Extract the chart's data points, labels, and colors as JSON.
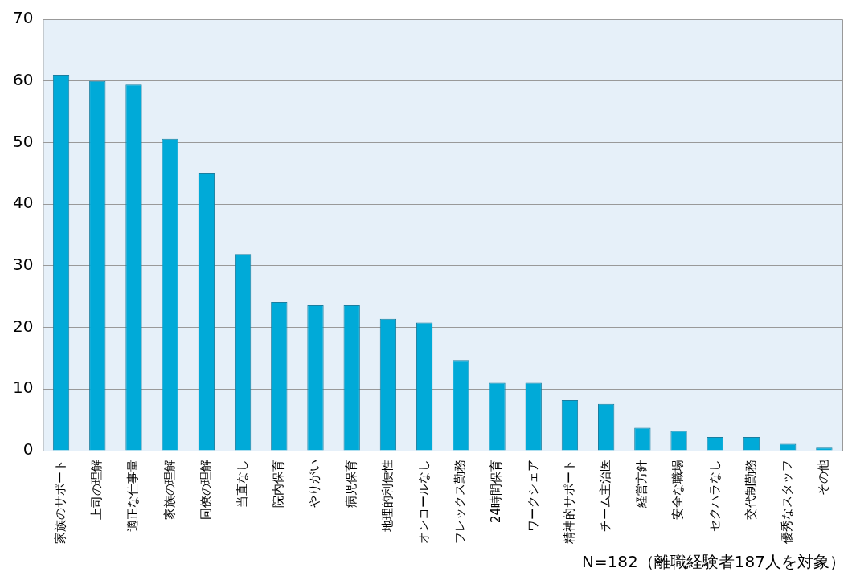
{
  "chart_data": {
    "type": "bar",
    "categories": [
      "家族のサポート",
      "上司の理解",
      "適正な仕事量",
      "家族の理解",
      "同僚の理解",
      "当直なし",
      "院内保育",
      "やりがい",
      "病児保育",
      "地理的利便性",
      "オンコールなし",
      "フレックス勤務",
      "24時間保育",
      "ワークシェア",
      "精神的サポート",
      "チーム主治医",
      "経営方針",
      "安全な職場",
      "セクハラなし",
      "交代制勤務",
      "優秀なスタッフ",
      "その他"
    ],
    "values": [
      61.0,
      60.0,
      59.4,
      50.6,
      45.1,
      31.9,
      24.1,
      23.6,
      23.6,
      21.4,
      20.8,
      14.7,
      11.0,
      11.0,
      8.2,
      7.6,
      3.7,
      3.2,
      2.2,
      2.2,
      1.1,
      0.5
    ],
    "color": "#00aad8",
    "ylim": [
      0,
      70
    ],
    "yticks": [
      0,
      10,
      20,
      30,
      40,
      50,
      60,
      70
    ],
    "grid": "y",
    "legend": false,
    "annotations": [
      "N=182（離職経験者187人を対象）"
    ]
  }
}
